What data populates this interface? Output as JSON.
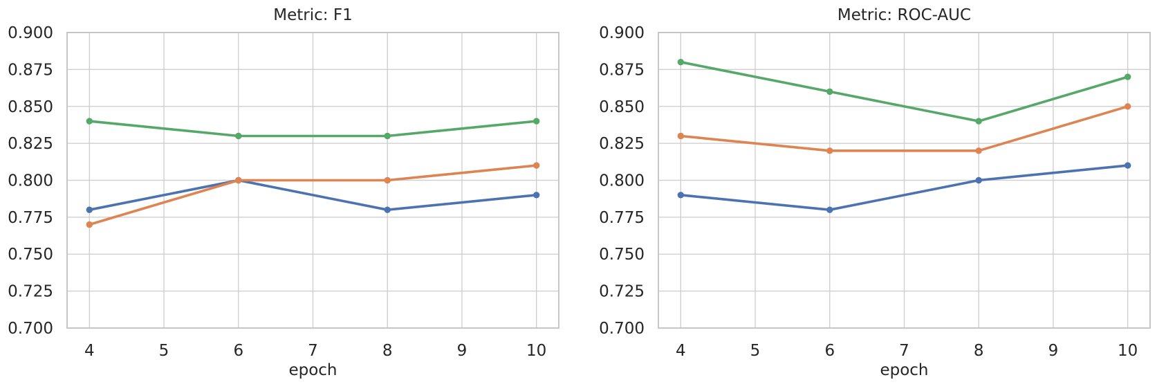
{
  "style": {
    "background_color": "#ffffff",
    "text_color": "#262626",
    "grid_color": "#cccccc",
    "spine_color": "#c6c6c6"
  },
  "chart_data": [
    {
      "id": "f1",
      "type": "line",
      "title": "Metric: F1",
      "xlabel": "epoch",
      "ylabel": "",
      "grid": true,
      "legend": "none",
      "marker": "circle",
      "x": [
        4,
        6,
        8,
        10
      ],
      "xlim": [
        3.7,
        10.3
      ],
      "ylim": [
        0.7,
        0.9
      ],
      "xticks": [
        4,
        5,
        6,
        7,
        8,
        9,
        10
      ],
      "xtick_labels": [
        "4",
        "5",
        "6",
        "7",
        "8",
        "9",
        "10"
      ],
      "yticks": [
        0.7,
        0.725,
        0.75,
        0.775,
        0.8,
        0.825,
        0.85,
        0.875,
        0.9
      ],
      "ytick_labels": [
        "0.700",
        "0.725",
        "0.750",
        "0.775",
        "0.800",
        "0.825",
        "0.850",
        "0.875",
        "0.900"
      ],
      "series": [
        {
          "name": "blue-series",
          "color": "#4c72b0",
          "values": [
            0.78,
            0.8,
            0.78,
            0.79
          ]
        },
        {
          "name": "orange-series",
          "color": "#dd8452",
          "values": [
            0.77,
            0.8,
            0.8,
            0.81
          ]
        },
        {
          "name": "green-series",
          "color": "#55a868",
          "values": [
            0.84,
            0.83,
            0.83,
            0.84
          ]
        }
      ]
    },
    {
      "id": "roc-auc",
      "type": "line",
      "title": "Metric: ROC-AUC",
      "xlabel": "epoch",
      "ylabel": "",
      "grid": true,
      "legend": "none",
      "marker": "circle",
      "x": [
        4,
        6,
        8,
        10
      ],
      "xlim": [
        3.7,
        10.3
      ],
      "ylim": [
        0.7,
        0.9
      ],
      "xticks": [
        4,
        5,
        6,
        7,
        8,
        9,
        10
      ],
      "xtick_labels": [
        "4",
        "5",
        "6",
        "7",
        "8",
        "9",
        "10"
      ],
      "yticks": [
        0.7,
        0.725,
        0.75,
        0.775,
        0.8,
        0.825,
        0.85,
        0.875,
        0.9
      ],
      "ytick_labels": [
        "0.700",
        "0.725",
        "0.750",
        "0.775",
        "0.800",
        "0.825",
        "0.850",
        "0.875",
        "0.900"
      ],
      "series": [
        {
          "name": "blue-series",
          "color": "#4c72b0",
          "values": [
            0.79,
            0.78,
            0.8,
            0.81
          ]
        },
        {
          "name": "orange-series",
          "color": "#dd8452",
          "values": [
            0.83,
            0.82,
            0.82,
            0.85
          ]
        },
        {
          "name": "green-series",
          "color": "#55a868",
          "values": [
            0.88,
            0.86,
            0.84,
            0.87
          ]
        }
      ]
    }
  ]
}
